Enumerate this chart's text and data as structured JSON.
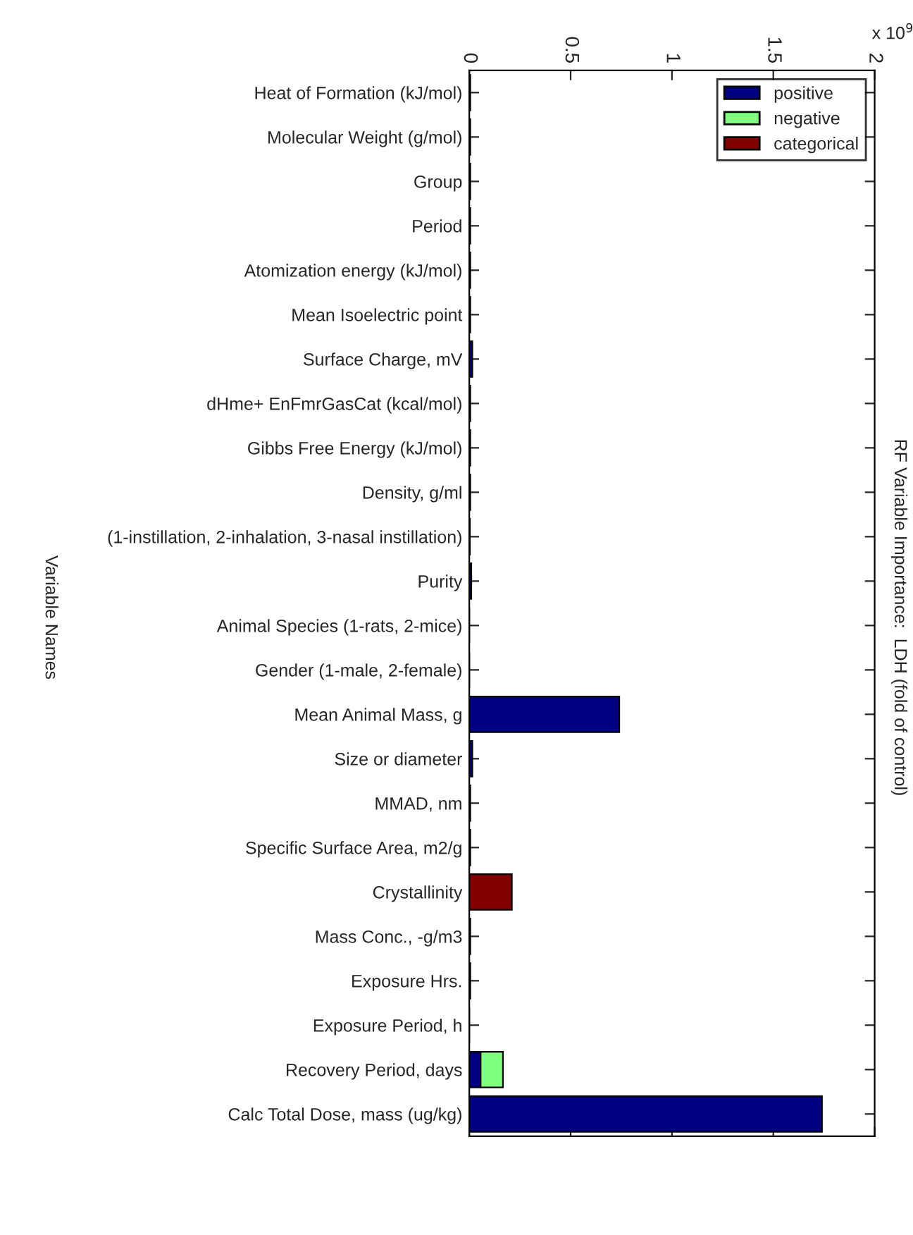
{
  "chart_data": {
    "type": "bar",
    "orientation": "horizontal",
    "stacked": true,
    "title": "RF Variable Importance:  LDH (fold of control)",
    "ylabel": "Variable Names",
    "annotations": [
      "x 10$^{9}$"
    ],
    "categories": [
      "Heat of Formation (kJ/mol)",
      "Molecular Weight (g/mol)",
      "Group",
      "Period",
      "Atomization energy (kJ/mol)",
      "Mean Isoelectric point",
      "Surface Charge, mV",
      "dHme+ EnFmrGasCat (kcal/mol)",
      "Gibbs Free Energy (kJ/mol)",
      "Density, g/ml",
      "(1-instillation, 2-inhalation, 3-nasal instillation)",
      "Purity",
      "Animal Species (1-rats, 2-mice)",
      "Gender (1-male, 2-female)",
      "Mean Animal Mass, g",
      "Size or diameter",
      "MMAD, nm",
      "Specific Surface Area, m2/g",
      "Crystallinity",
      "Mass Conc., -g/m3",
      "Exposure Hrs.",
      "Exposure Period, h",
      "Recovery Period, days",
      "Calc Total Dose, mass (ug/kg)"
    ],
    "series": [
      {
        "name": "positive",
        "color": "#000080",
        "values": [
          0.005,
          0.005,
          0.005,
          0.005,
          0.005,
          0.005,
          0.015,
          0.005,
          0.005,
          0.005,
          0.003,
          0.01,
          0,
          0,
          0.74,
          0.015,
          0.005,
          0.005,
          null,
          0.005,
          0.005,
          0,
          0.056,
          1.74
        ]
      },
      {
        "name": "negative",
        "color": "#80ff80",
        "values": [
          null,
          null,
          null,
          null,
          null,
          null,
          null,
          null,
          null,
          null,
          null,
          null,
          null,
          null,
          null,
          null,
          null,
          null,
          null,
          null,
          null,
          null,
          0.11,
          null
        ]
      },
      {
        "name": "categorical",
        "color": "#800000",
        "values": [
          null,
          null,
          null,
          null,
          null,
          null,
          null,
          null,
          null,
          null,
          null,
          null,
          null,
          null,
          null,
          null,
          null,
          null,
          0.21,
          null,
          null,
          null,
          null,
          null
        ]
      }
    ],
    "xlim": [
      0,
      2
    ],
    "xticks": [
      0,
      0.5,
      1,
      1.5,
      2
    ],
    "legend": "top right",
    "grid": false
  }
}
